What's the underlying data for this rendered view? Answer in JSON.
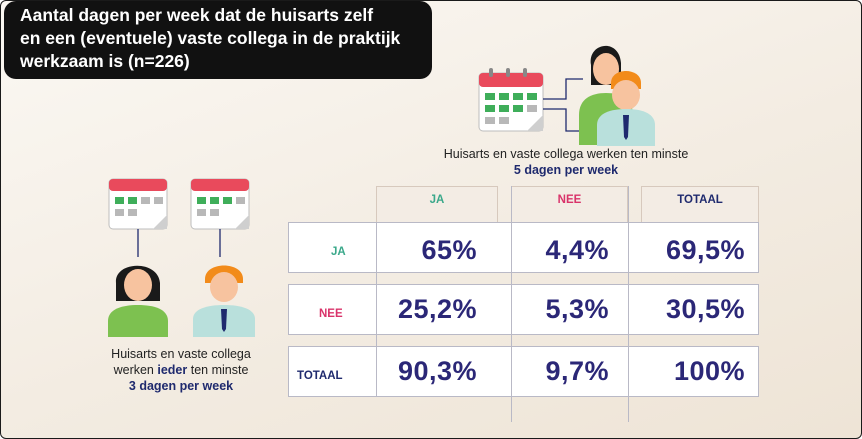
{
  "title": {
    "line1": "Aantal dagen per week dat de huisarts zelf",
    "line2": "en een (eventuele) vaste collega in de praktijk",
    "line3": "werkzaam is (n=226)"
  },
  "caption_top": {
    "line1": "Huisarts en vaste collega werken ten minste",
    "line2": "5 dagen per week"
  },
  "caption_left": {
    "line1": "Huisarts en vaste collega",
    "line2_pre": "werken ",
    "line2_em": "ieder",
    "line2_post": " ten minste",
    "line3": "3 dagen per week"
  },
  "colors": {
    "ja": "#3aa88a",
    "nee": "#d9336a",
    "totaal": "#1f2a6e",
    "values": "#2b2777"
  },
  "table": {
    "columns": [
      "JA",
      "NEE",
      "TOTAAL"
    ],
    "rows": [
      {
        "label": "JA",
        "values": [
          "65%",
          "4,4%",
          "69,5%"
        ]
      },
      {
        "label": "NEE",
        "values": [
          "25,2%",
          "5,3%",
          "30,5%"
        ]
      },
      {
        "label": "TOTAAL",
        "values": [
          "90,3%",
          "9,7%",
          "100%"
        ]
      }
    ]
  }
}
